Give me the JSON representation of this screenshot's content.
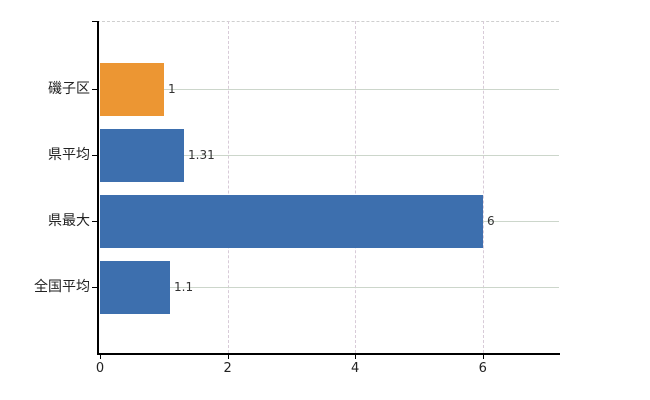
{
  "chart_data": {
    "type": "bar",
    "orientation": "horizontal",
    "title": "",
    "xlabel": "",
    "ylabel": "",
    "categories": [
      "磯子区",
      "県平均",
      "県最大",
      "全国平均"
    ],
    "values": [
      1,
      1.31,
      6,
      1.1
    ],
    "value_labels": [
      "1",
      "1.31",
      "6",
      "1.1"
    ],
    "bar_colors": [
      "#ec9633",
      "#3d6fae",
      "#3d6fae",
      "#3d6fae"
    ],
    "x_ticks": [
      0,
      2,
      4,
      6
    ],
    "x_tick_labels": [
      "0",
      "2",
      "4",
      "6"
    ],
    "xlim": [
      0,
      7.2
    ],
    "grid": true,
    "legend": "none",
    "colors": {
      "bar_blue": "#3d6fae",
      "bar_orange": "#ec9633",
      "axis": "#000000",
      "hgrid": "#ccd6cb",
      "vgrid": "#d8cbd8",
      "label_text": "#222222",
      "value_text": "#333333",
      "background": "#ffffff"
    }
  }
}
